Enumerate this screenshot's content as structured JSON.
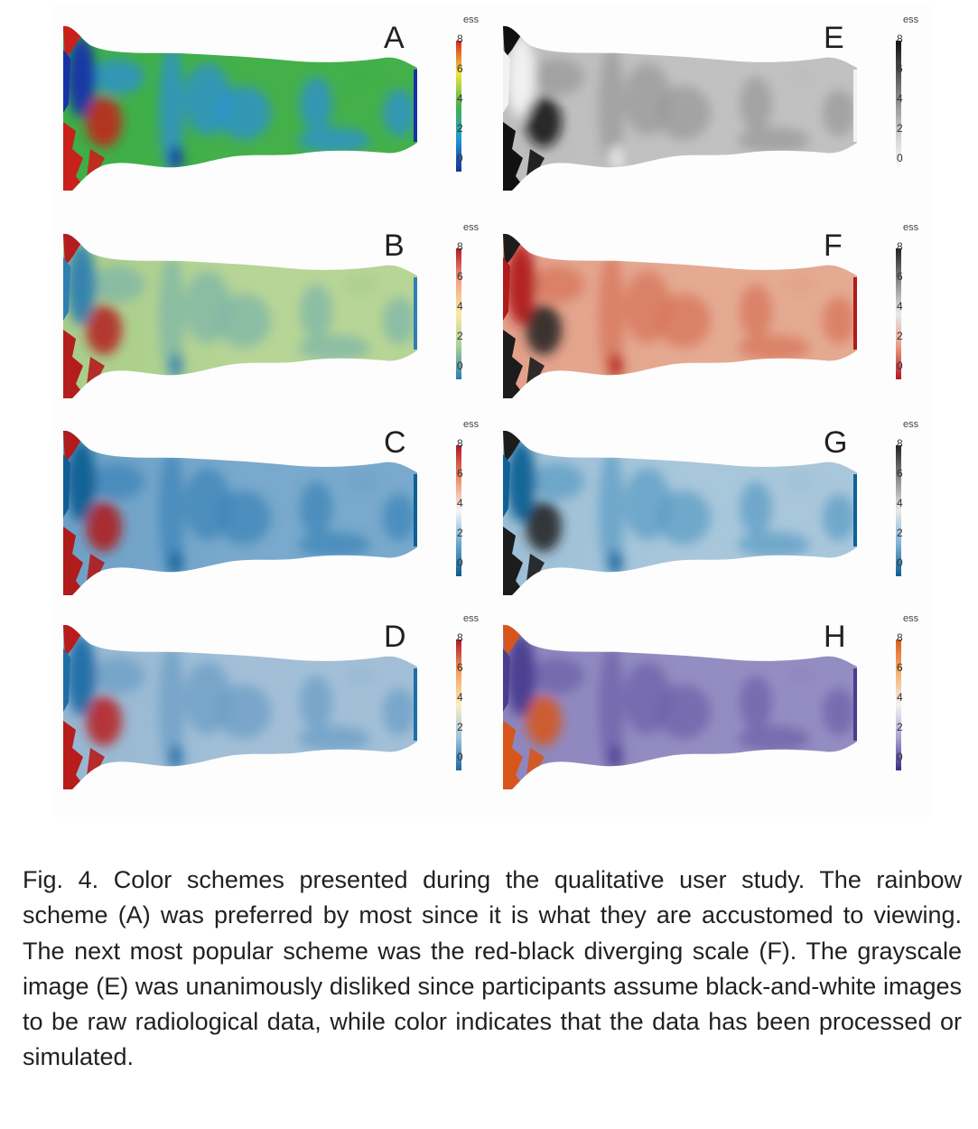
{
  "figure": {
    "panels": [
      {
        "id": "A",
        "label": "A",
        "scheme": "rainbow",
        "colors": {
          "low": "#1633a6",
          "mid": "#3dae46",
          "high": "#c8211b",
          "base": "#44b04a",
          "cool": "#2d8fd6"
        },
        "bar": [
          "#d7261e",
          "#f0e63a",
          "#45b24c",
          "#1e9ad6",
          "#1a2f9a"
        ],
        "colorbar": {
          "title": "ess",
          "ticks": [
            "8",
            "6",
            "4",
            "2",
            "0"
          ]
        }
      },
      {
        "id": "B",
        "label": "B",
        "scheme": "green-yellow-red",
        "colors": {
          "low": "#2f7fb0",
          "mid": "#a8cd8a",
          "high": "#b41d1d",
          "base": "#b7d596",
          "cool": "#7fb5a8"
        },
        "bar": [
          "#b2182b",
          "#f4a582",
          "#fde9a0",
          "#a6d096",
          "#2c7bb6"
        ],
        "colorbar": {
          "title": "ess",
          "ticks": [
            "8",
            "6",
            "4",
            "2",
            "0"
          ]
        }
      },
      {
        "id": "C",
        "label": "C",
        "scheme": "blue-white-red",
        "colors": {
          "low": "#0f5f94",
          "mid": "#6ea1c6",
          "high": "#b01b1b",
          "base": "#79a9cc",
          "cool": "#3e86b8"
        },
        "bar": [
          "#b2182b",
          "#ef8a62",
          "#f7f7f7",
          "#67a9cf",
          "#0b5a91"
        ],
        "colorbar": {
          "title": "ess",
          "ticks": [
            "8",
            "6",
            "4",
            "2",
            "0"
          ]
        }
      },
      {
        "id": "D",
        "label": "D",
        "scheme": "blue-yellow-red",
        "colors": {
          "low": "#1f6da5",
          "mid": "#96b7d1",
          "high": "#b81c1c",
          "base": "#a2bfd7",
          "cool": "#6b9dc5"
        },
        "bar": [
          "#b2182b",
          "#f6a05a",
          "#fbeec0",
          "#9cc3de",
          "#1c67a3"
        ],
        "colorbar": {
          "title": "ess",
          "ticks": [
            "8",
            "6",
            "4",
            "2",
            "0"
          ]
        }
      },
      {
        "id": "E",
        "label": "E",
        "scheme": "grayscale",
        "colors": {
          "low": "#f2f2f2",
          "mid": "#bdbdbd",
          "high": "#111111",
          "base": "#c1c1c1",
          "cool": "#9a9a9a"
        },
        "bar": [
          "#111111",
          "#555555",
          "#999999",
          "#d6d6d6",
          "#ffffff"
        ],
        "colorbar": {
          "title": "ess",
          "ticks": [
            "8",
            "6",
            "4",
            "2",
            "0"
          ]
        }
      },
      {
        "id": "F",
        "label": "F",
        "scheme": "red-black-diverging",
        "colors": {
          "low": "#b11a1a",
          "mid": "#e3a08a",
          "high": "#1c1c1c",
          "base": "#e4aa92",
          "cool": "#d7755c"
        },
        "bar": [
          "#222222",
          "#8a8a8a",
          "#e8e8e8",
          "#eb9a80",
          "#b2182b"
        ],
        "colorbar": {
          "title": "ess",
          "ticks": [
            "8",
            "6",
            "4",
            "2",
            "0"
          ]
        }
      },
      {
        "id": "G",
        "label": "G",
        "scheme": "blue-black-diverging",
        "colors": {
          "low": "#0e6196",
          "mid": "#9dbfd6",
          "high": "#1c1c1c",
          "base": "#a9c7db",
          "cool": "#5e9dc6"
        },
        "bar": [
          "#222222",
          "#8a8a8a",
          "#e8e8e8",
          "#7fb2d4",
          "#0c5e93"
        ],
        "colorbar": {
          "title": "ess",
          "ticks": [
            "8",
            "6",
            "4",
            "2",
            "0"
          ]
        }
      },
      {
        "id": "H",
        "label": "H",
        "scheme": "purple-orange",
        "colors": {
          "low": "#4a3d8f",
          "mid": "#8d86be",
          "high": "#d7551a",
          "base": "#948dc2",
          "cool": "#6d62aa"
        },
        "bar": [
          "#d9601e",
          "#f3b06b",
          "#f2f2f2",
          "#a8a2cf",
          "#3b2b86"
        ],
        "colorbar": {
          "title": "ess",
          "ticks": [
            "8",
            "6",
            "4",
            "2",
            "0"
          ]
        }
      }
    ]
  },
  "caption": "Fig. 4. Color schemes presented during the qualitative user study. The rainbow scheme (A) was preferred by most since it is what they are accustomed to viewing. The next most popular scheme was the red-black diverging scale (F). The grayscale image (E) was unanimously disliked since participants assume black-and-white images to be raw radiological data, while color indicates that the data has been processed or simulated."
}
